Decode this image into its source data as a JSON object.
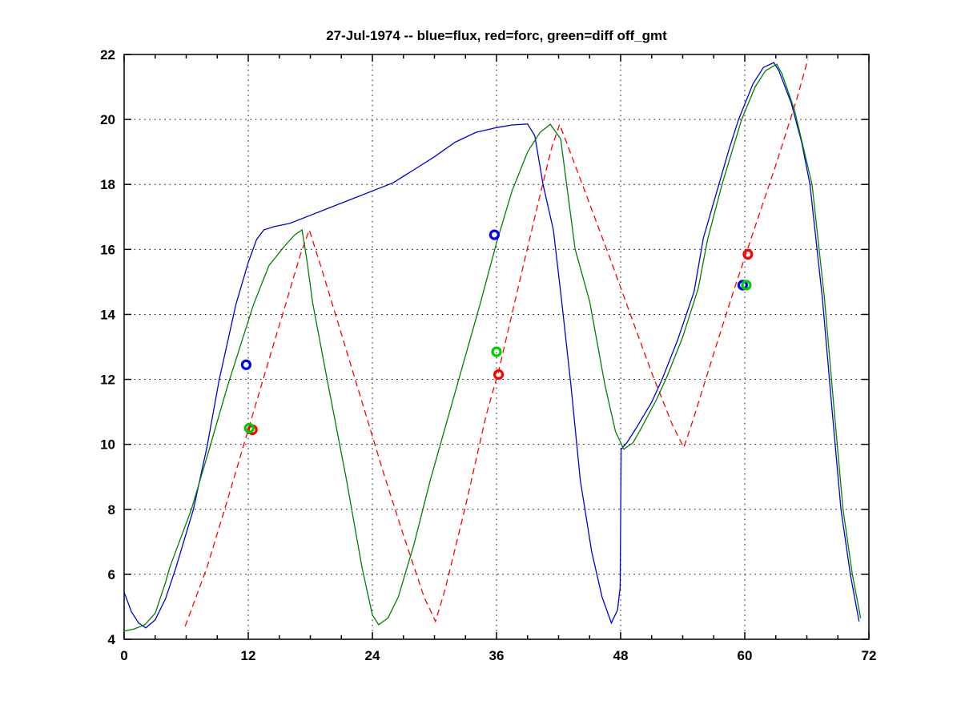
{
  "title": "27-Jul-1974 -- blue=flux, red=forc, green=diff off_gmt",
  "chart_data": {
    "type": "line",
    "title": "27-Jul-1974 -- blue=flux, red=forc, green=diff off_gmt",
    "xlabel": "",
    "ylabel": "",
    "grid": "dotted-at-major-ticks",
    "legend_position": "none (legend encoded in title)",
    "background": "#ffffff",
    "x_axis": {
      "range": [
        0,
        72
      ],
      "major_ticks": [
        0,
        12,
        24,
        36,
        48,
        60,
        72
      ],
      "minor_step": 3
    },
    "y_axis": {
      "range": [
        4,
        22
      ],
      "major_ticks": [
        4,
        6,
        8,
        10,
        12,
        14,
        16,
        18,
        20,
        22
      ]
    },
    "series": [
      {
        "name": "flux",
        "color": "#0000dd",
        "style": "solid",
        "points": [
          [
            0,
            5.45
          ],
          [
            0.7,
            4.85
          ],
          [
            1.4,
            4.5
          ],
          [
            2.1,
            4.35
          ],
          [
            3,
            4.6
          ],
          [
            4,
            5.25
          ],
          [
            5,
            6.2
          ],
          [
            6.7,
            8
          ],
          [
            8,
            9.9
          ],
          [
            9.2,
            12
          ],
          [
            10.8,
            14.3
          ],
          [
            12,
            15.6
          ],
          [
            12.8,
            16.3
          ],
          [
            13.5,
            16.6
          ],
          [
            14.5,
            16.7
          ],
          [
            16,
            16.8
          ],
          [
            18,
            17.05
          ],
          [
            20,
            17.3
          ],
          [
            22,
            17.55
          ],
          [
            24.4,
            17.85
          ],
          [
            26,
            18.05
          ],
          [
            28,
            18.45
          ],
          [
            30,
            18.85
          ],
          [
            32,
            19.3
          ],
          [
            34,
            19.6
          ],
          [
            36,
            19.75
          ],
          [
            37.5,
            19.83
          ],
          [
            39,
            19.86
          ],
          [
            39.7,
            19.5
          ],
          [
            40.5,
            18
          ],
          [
            41.5,
            16.6
          ],
          [
            42.3,
            14.4
          ],
          [
            43.2,
            11.8
          ],
          [
            44.1,
            8.9
          ],
          [
            45.2,
            6.7
          ],
          [
            46.2,
            5.3
          ],
          [
            47.1,
            4.5
          ],
          [
            47.7,
            4.9
          ],
          [
            47.95,
            5.6
          ],
          [
            48.05,
            9.85
          ],
          [
            48.6,
            10.05
          ],
          [
            49.5,
            10.5
          ],
          [
            51,
            11.3
          ],
          [
            52,
            12
          ],
          [
            53.5,
            13.2
          ],
          [
            55.1,
            14.7
          ],
          [
            56,
            16.35
          ],
          [
            57.5,
            18
          ],
          [
            58.5,
            19.1
          ],
          [
            59.4,
            20
          ],
          [
            60.8,
            21.1
          ],
          [
            61.8,
            21.6
          ],
          [
            62.8,
            21.75
          ],
          [
            63.3,
            21.5
          ],
          [
            64.5,
            20.5
          ],
          [
            65.5,
            19.3
          ],
          [
            66.3,
            18
          ],
          [
            67.5,
            14.5
          ],
          [
            68.4,
            11.2
          ],
          [
            69.3,
            8
          ],
          [
            70.2,
            6
          ],
          [
            71.05,
            4.55
          ]
        ]
      },
      {
        "name": "forc",
        "color": "#ff0000",
        "style": "dashed",
        "points": [
          [
            5.9,
            4.4
          ],
          [
            8,
            6.2
          ],
          [
            10,
            8.3
          ],
          [
            12,
            10.45
          ],
          [
            14,
            12.6
          ],
          [
            15.6,
            14.3
          ],
          [
            17,
            15.8
          ],
          [
            17.9,
            16.6
          ],
          [
            19,
            15.5
          ],
          [
            21,
            13.4
          ],
          [
            23,
            11.3
          ],
          [
            25,
            9.2
          ],
          [
            27,
            7.2
          ],
          [
            29,
            5.3
          ],
          [
            30.1,
            4.55
          ],
          [
            31,
            5.5
          ],
          [
            33,
            8.1
          ],
          [
            35,
            10.9
          ],
          [
            36.2,
            12.25
          ],
          [
            38,
            14.7
          ],
          [
            40,
            17.4
          ],
          [
            41.3,
            19.1
          ],
          [
            42.1,
            19.85
          ],
          [
            43,
            19.1
          ],
          [
            45,
            17.4
          ],
          [
            47,
            15.7
          ],
          [
            49,
            13.95
          ],
          [
            51,
            12.2
          ],
          [
            53,
            10.6
          ],
          [
            54.1,
            9.9
          ],
          [
            55,
            10.75
          ],
          [
            57,
            12.8
          ],
          [
            59,
            14.8
          ],
          [
            61,
            16.7
          ],
          [
            63,
            18.6
          ],
          [
            65,
            20.6
          ],
          [
            66.1,
            21.85
          ]
        ]
      },
      {
        "name": "diff",
        "color": "#008000",
        "style": "solid",
        "points": [
          [
            0,
            4.25
          ],
          [
            1,
            4.32
          ],
          [
            2,
            4.45
          ],
          [
            3,
            4.8
          ],
          [
            4,
            5.75
          ],
          [
            4.4,
            6.2
          ],
          [
            6.5,
            8
          ],
          [
            8,
            9.6
          ],
          [
            10,
            11.8
          ],
          [
            12.5,
            14.3
          ],
          [
            14,
            15.5
          ],
          [
            15.5,
            16.1
          ],
          [
            16.5,
            16.45
          ],
          [
            17.2,
            16.6
          ],
          [
            17.7,
            15.6
          ],
          [
            18.2,
            14.4
          ],
          [
            19.5,
            12.2
          ],
          [
            21.5,
            8.9
          ],
          [
            23,
            6.2
          ],
          [
            24,
            4.75
          ],
          [
            24.6,
            4.45
          ],
          [
            25.5,
            4.65
          ],
          [
            26.5,
            5.3
          ],
          [
            28,
            6.9
          ],
          [
            29.6,
            8.9
          ],
          [
            32,
            11.6
          ],
          [
            34.4,
            14.3
          ],
          [
            36,
            16.2
          ],
          [
            37.5,
            17.8
          ],
          [
            39,
            19
          ],
          [
            40.2,
            19.6
          ],
          [
            41.2,
            19.85
          ],
          [
            42.2,
            19.4
          ],
          [
            43.6,
            16
          ],
          [
            45,
            14.4
          ],
          [
            46.5,
            11.8
          ],
          [
            47.5,
            10.4
          ],
          [
            48.3,
            9.85
          ],
          [
            49.2,
            10.05
          ],
          [
            50,
            10.5
          ],
          [
            51.5,
            11.4
          ],
          [
            52.5,
            12.1
          ],
          [
            54,
            13.3
          ],
          [
            55.5,
            14.8
          ],
          [
            56.4,
            16.3
          ],
          [
            57.8,
            18
          ],
          [
            59.7,
            20
          ],
          [
            61,
            21
          ],
          [
            62,
            21.5
          ],
          [
            63.1,
            21.7
          ],
          [
            63.6,
            21.4
          ],
          [
            64.8,
            20.3
          ],
          [
            66.5,
            18
          ],
          [
            67.7,
            14.5
          ],
          [
            68.6,
            11.2
          ],
          [
            69.5,
            8
          ],
          [
            70.4,
            6
          ],
          [
            71.2,
            4.65
          ]
        ]
      }
    ],
    "markers": [
      {
        "series": "forc",
        "color": "#ff0000",
        "shape": "open-circle",
        "points": [
          [
            12.4,
            10.45
          ],
          [
            36.2,
            12.15
          ],
          [
            60.3,
            15.85
          ]
        ]
      },
      {
        "series": "flux",
        "color": "#0000ff",
        "shape": "open-circle",
        "points": [
          [
            11.8,
            12.45
          ],
          [
            35.8,
            16.45
          ],
          [
            59.8,
            14.9
          ]
        ]
      },
      {
        "series": "diff",
        "color": "#00cc00",
        "shape": "open-circle",
        "points": [
          [
            12.1,
            10.5
          ],
          [
            36.0,
            12.85
          ],
          [
            60.15,
            14.9
          ]
        ]
      }
    ]
  }
}
